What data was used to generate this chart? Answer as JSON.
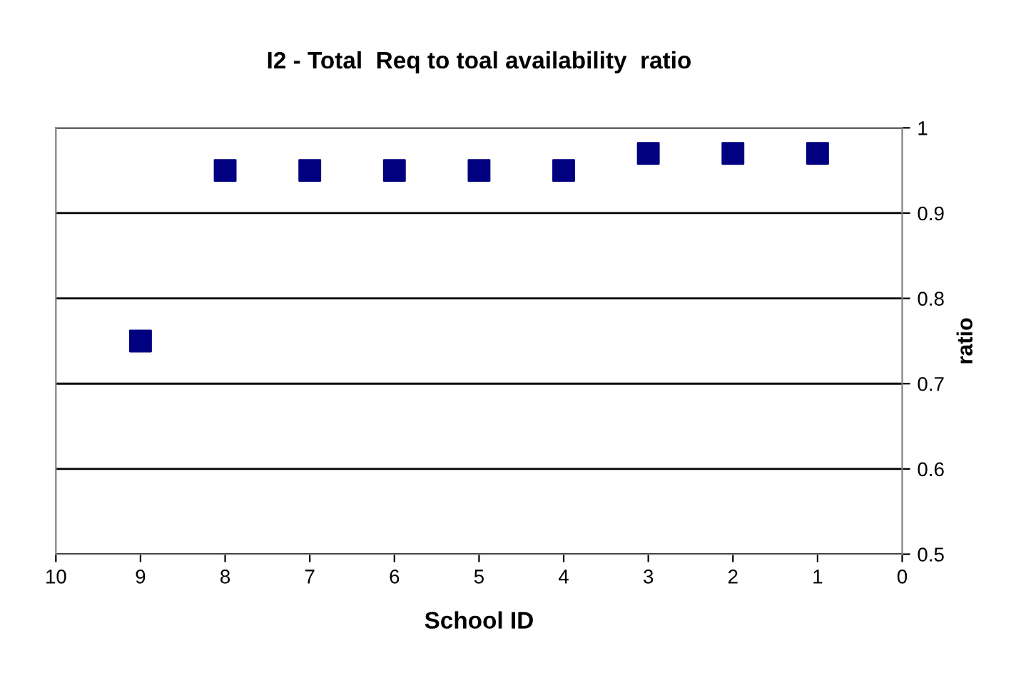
{
  "chart_data": {
    "type": "scatter",
    "title": "I2 - Total  Req to toal availability  ratio",
    "xlabel": "School ID",
    "ylabel": "ratio",
    "x": [
      9,
      8,
      7,
      6,
      5,
      4,
      3,
      2,
      1
    ],
    "series": [
      {
        "color": "#000080",
        "values": [
          0.75,
          0.95,
          0.95,
          0.95,
          0.95,
          0.95,
          0.97,
          0.97,
          0.97
        ]
      }
    ],
    "xlim": [
      10,
      0
    ],
    "xticks": [
      10,
      9,
      8,
      7,
      6,
      5,
      4,
      3,
      2,
      1,
      0
    ],
    "ylim": [
      0.5,
      1
    ],
    "yticks": [
      0.5,
      0.6,
      0.7,
      0.8,
      0.9,
      1
    ],
    "grid": "y",
    "marker": "square",
    "legend": false
  }
}
